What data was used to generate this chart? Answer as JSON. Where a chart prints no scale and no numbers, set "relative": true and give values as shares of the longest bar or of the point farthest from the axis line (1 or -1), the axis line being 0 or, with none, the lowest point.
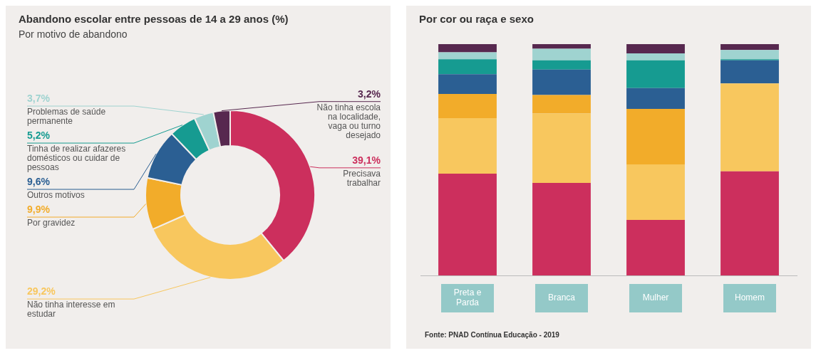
{
  "chart_data": [
    {
      "type": "donut",
      "title": "Abandono escolar entre pessoas de 14 a 29 anos (%)",
      "subtitle": "Por motivo de abandono",
      "categories": [
        "Precisava trabalhar",
        "Não tinha interesse em estudar",
        "Por gravidez",
        "Outros motivos",
        "Tinha de realizar afazeres domésticos ou cuidar de pessoas",
        "Problemas de saúde permanente",
        "Não tinha escola na localidade, vaga ou turno desejado"
      ],
      "values": [
        39.1,
        29.2,
        9.9,
        9.6,
        5.2,
        3.7,
        3.2
      ],
      "value_labels": [
        "39,1%",
        "29,2%",
        "9,9%",
        "9,6%",
        "5,2%",
        "3,7%",
        "3,2%"
      ],
      "colors": [
        "#cc2f5d",
        "#f8c75e",
        "#f2ac2a",
        "#2b5f93",
        "#169b91",
        "#9fd3d0",
        "#57284f"
      ]
    },
    {
      "type": "bar",
      "title": "Por cor ou raça e sexo",
      "stacked": true,
      "relative": true,
      "categories": [
        "Preta e Parda",
        "Branca",
        "Mulher",
        "Homem"
      ],
      "series": [
        {
          "color": "#cc2f5d",
          "values": [
            0.44,
            0.4,
            0.24,
            0.45
          ]
        },
        {
          "color": "#f8c75e",
          "values": [
            0.24,
            0.3,
            0.24,
            0.38
          ]
        },
        {
          "color": "#f2ac2a",
          "values": [
            0.105,
            0.08,
            0.24,
            0
          ]
        },
        {
          "color": "#2b5f93",
          "values": [
            0.085,
            0.11,
            0.09,
            0.1
          ]
        },
        {
          "color": "#169b91",
          "values": [
            0.065,
            0.04,
            0.12,
            0.005
          ]
        },
        {
          "color": "#9fd3d0",
          "values": [
            0.03,
            0.05,
            0.03,
            0.04
          ]
        },
        {
          "color": "#57284f",
          "values": [
            0.035,
            0.02,
            0.04,
            0.025
          ]
        }
      ],
      "annotations": [
        "Fonte: PNAD Contínua Educação - 2019"
      ]
    }
  ]
}
